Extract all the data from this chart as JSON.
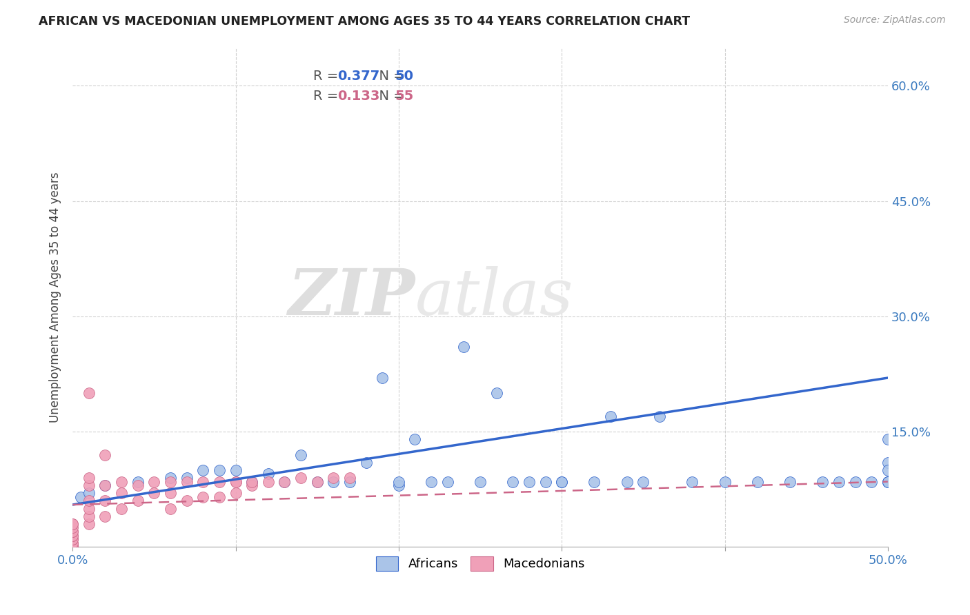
{
  "title": "AFRICAN VS MACEDONIAN UNEMPLOYMENT AMONG AGES 35 TO 44 YEARS CORRELATION CHART",
  "source": "Source: ZipAtlas.com",
  "ylabel": "Unemployment Among Ages 35 to 44 years",
  "xlim": [
    0.0,
    0.5
  ],
  "ylim": [
    0.0,
    0.65
  ],
  "yticks": [
    0.0,
    0.15,
    0.3,
    0.45,
    0.6
  ],
  "xticks": [
    0.0,
    0.1,
    0.2,
    0.3,
    0.4,
    0.5
  ],
  "grid_color": "#d0d0d0",
  "background_color": "#ffffff",
  "africans_color": "#aac4e8",
  "macedonians_color": "#f0a0b8",
  "line_african_color": "#3366cc",
  "line_macedonian_color": "#cc6688",
  "R_african": "0.377",
  "N_african": "50",
  "R_macedonian": "0.133",
  "N_macedonian": "55",
  "watermark_zip": "ZIP",
  "watermark_atlas": "atlas",
  "africans_x": [
    0.005,
    0.01,
    0.02,
    0.04,
    0.06,
    0.07,
    0.08,
    0.09,
    0.1,
    0.11,
    0.12,
    0.13,
    0.14,
    0.15,
    0.16,
    0.17,
    0.18,
    0.19,
    0.2,
    0.21,
    0.22,
    0.23,
    0.24,
    0.25,
    0.26,
    0.27,
    0.28,
    0.29,
    0.3,
    0.32,
    0.33,
    0.34,
    0.35,
    0.36,
    0.38,
    0.4,
    0.42,
    0.44,
    0.46,
    0.47,
    0.48,
    0.49,
    0.5,
    0.5,
    0.5,
    0.5,
    0.5,
    0.5,
    0.2,
    0.3
  ],
  "africans_y": [
    0.065,
    0.07,
    0.08,
    0.085,
    0.09,
    0.09,
    0.1,
    0.1,
    0.1,
    0.085,
    0.095,
    0.085,
    0.12,
    0.085,
    0.085,
    0.085,
    0.11,
    0.22,
    0.08,
    0.14,
    0.085,
    0.085,
    0.26,
    0.085,
    0.2,
    0.085,
    0.085,
    0.085,
    0.085,
    0.085,
    0.17,
    0.085,
    0.085,
    0.17,
    0.085,
    0.085,
    0.085,
    0.085,
    0.085,
    0.085,
    0.085,
    0.085,
    0.085,
    0.11,
    0.14,
    0.1,
    0.085,
    0.085,
    0.085,
    0.085
  ],
  "macedonians_x": [
    0.0,
    0.0,
    0.0,
    0.0,
    0.0,
    0.0,
    0.0,
    0.0,
    0.0,
    0.0,
    0.0,
    0.0,
    0.0,
    0.0,
    0.0,
    0.0,
    0.0,
    0.01,
    0.01,
    0.01,
    0.01,
    0.01,
    0.01,
    0.02,
    0.02,
    0.02,
    0.03,
    0.03,
    0.04,
    0.05,
    0.06,
    0.06,
    0.07,
    0.08,
    0.09,
    0.1,
    0.1,
    0.11,
    0.12,
    0.13,
    0.14,
    0.15,
    0.16,
    0.17,
    0.01,
    0.02,
    0.03,
    0.04,
    0.05,
    0.06,
    0.07,
    0.08,
    0.09,
    0.1,
    0.11
  ],
  "macedonians_y": [
    0.0,
    0.0,
    0.0,
    0.0,
    0.0,
    0.0,
    0.005,
    0.005,
    0.01,
    0.01,
    0.015,
    0.015,
    0.02,
    0.02,
    0.025,
    0.03,
    0.03,
    0.03,
    0.04,
    0.05,
    0.06,
    0.08,
    0.09,
    0.04,
    0.06,
    0.08,
    0.05,
    0.07,
    0.06,
    0.07,
    0.05,
    0.07,
    0.06,
    0.065,
    0.065,
    0.07,
    0.085,
    0.08,
    0.085,
    0.085,
    0.09,
    0.085,
    0.09,
    0.09,
    0.2,
    0.12,
    0.085,
    0.08,
    0.085,
    0.085,
    0.085,
    0.085,
    0.085,
    0.085,
    0.085
  ],
  "african_line_x0": 0.0,
  "african_line_y0": 0.055,
  "african_line_x1": 0.5,
  "african_line_y1": 0.22,
  "macedonian_line_x0": 0.0,
  "macedonian_line_y0": 0.055,
  "macedonian_line_x1": 0.5,
  "macedonian_line_y1": 0.085
}
